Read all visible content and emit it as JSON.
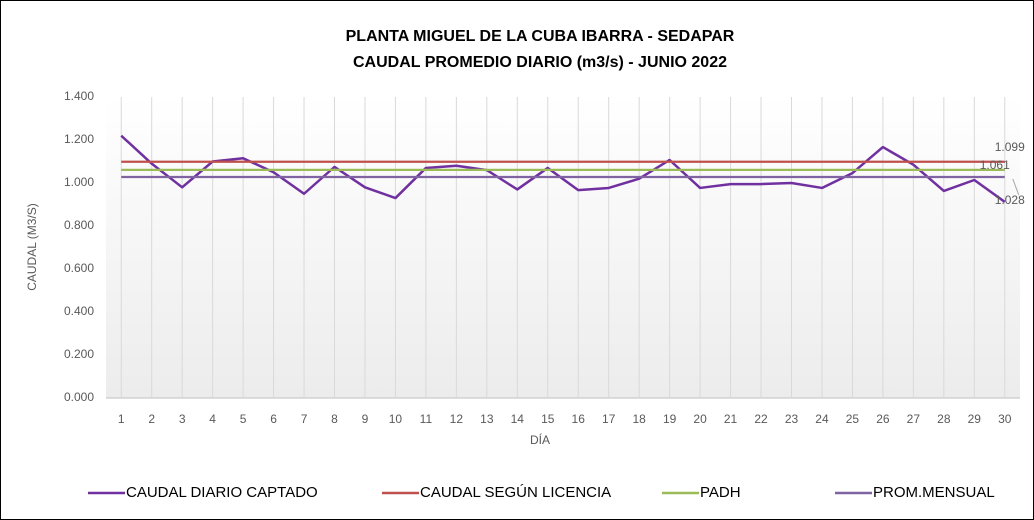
{
  "chart_data": {
    "type": "line",
    "title": [
      "PLANTA  MIGUEL DE LA CUBA IBARRA - SEDAPAR",
      "CAUDAL  PROMEDIO DIARIO (m3/s)  - JUNIO 2022"
    ],
    "x_label": "DÍA",
    "y_label": "CAUDAL (M3/S)",
    "categories": [
      "1",
      "2",
      "3",
      "4",
      "5",
      "6",
      "7",
      "8",
      "9",
      "10",
      "11",
      "12",
      "13",
      "14",
      "15",
      "16",
      "17",
      "18",
      "19",
      "20",
      "21",
      "22",
      "23",
      "24",
      "25",
      "26",
      "27",
      "28",
      "29",
      "30"
    ],
    "series": [
      {
        "name": "CAUDAL DIARIO CAPTADO",
        "color": "#7030a0",
        "values": [
          1.22,
          1.09,
          0.98,
          1.1,
          1.115,
          1.05,
          0.95,
          1.075,
          0.98,
          0.93,
          1.07,
          1.08,
          1.06,
          0.97,
          1.07,
          0.967,
          0.977,
          1.02,
          1.107,
          0.977,
          0.995,
          0.995,
          1.0,
          0.977,
          1.046,
          1.167,
          1.085,
          0.963,
          1.014,
          0.912
        ]
      },
      {
        "name": "CAUDAL SEGÚN LICENCIA",
        "color": "#c0504d",
        "values": [
          1.099,
          1.099,
          1.099,
          1.099,
          1.099,
          1.099,
          1.099,
          1.099,
          1.099,
          1.099,
          1.099,
          1.099,
          1.099,
          1.099,
          1.099,
          1.099,
          1.099,
          1.099,
          1.099,
          1.099,
          1.099,
          1.099,
          1.099,
          1.099,
          1.099,
          1.099,
          1.099,
          1.099,
          1.099,
          1.099
        ],
        "value_labels": [
          null,
          null,
          null,
          null,
          null,
          null,
          null,
          null,
          null,
          null,
          null,
          null,
          null,
          null,
          null,
          null,
          null,
          null,
          null,
          null,
          null,
          null,
          null,
          null,
          null,
          null,
          null,
          null,
          null,
          "1.099"
        ]
      },
      {
        "name": "PADH",
        "color": "#9bbb59",
        "values": [
          1.061,
          1.061,
          1.061,
          1.061,
          1.061,
          1.061,
          1.061,
          1.061,
          1.061,
          1.061,
          1.061,
          1.061,
          1.061,
          1.061,
          1.061,
          1.061,
          1.061,
          1.061,
          1.061,
          1.061,
          1.061,
          1.061,
          1.061,
          1.061,
          1.061,
          1.061,
          1.061,
          1.061,
          1.061,
          1.061
        ],
        "value_labels": [
          null,
          null,
          null,
          null,
          null,
          null,
          null,
          null,
          null,
          null,
          null,
          null,
          null,
          null,
          null,
          null,
          null,
          null,
          null,
          null,
          null,
          null,
          null,
          null,
          null,
          null,
          null,
          null,
          null,
          "1.061"
        ]
      },
      {
        "name": "PROM.MENSUAL",
        "color": "#8064a2",
        "values": [
          1.028,
          1.028,
          1.028,
          1.028,
          1.028,
          1.028,
          1.028,
          1.028,
          1.028,
          1.028,
          1.028,
          1.028,
          1.028,
          1.028,
          1.028,
          1.028,
          1.028,
          1.028,
          1.028,
          1.028,
          1.028,
          1.028,
          1.028,
          1.028,
          1.028,
          1.028,
          1.028,
          1.028,
          1.028,
          1.028
        ],
        "value_labels": [
          null,
          null,
          null,
          null,
          null,
          null,
          null,
          null,
          null,
          null,
          null,
          null,
          null,
          null,
          null,
          null,
          null,
          null,
          null,
          null,
          null,
          null,
          null,
          null,
          null,
          null,
          null,
          null,
          null,
          "1.028"
        ]
      }
    ],
    "ylim": [
      0,
      1.4
    ],
    "yticks": [
      {
        "value": 0,
        "label": "0.000"
      },
      {
        "value": 0.2,
        "label": "0.200"
      },
      {
        "value": 0.4,
        "label": "0.400"
      },
      {
        "value": 0.6,
        "label": "0.600"
      },
      {
        "value": 0.8,
        "label": "0.800"
      },
      {
        "value": 1.0,
        "label": "1.000"
      },
      {
        "value": 1.2,
        "label": "1.200"
      },
      {
        "value": 1.4,
        "label": "1.400"
      }
    ],
    "grid": "x",
    "legend": "bottom"
  }
}
